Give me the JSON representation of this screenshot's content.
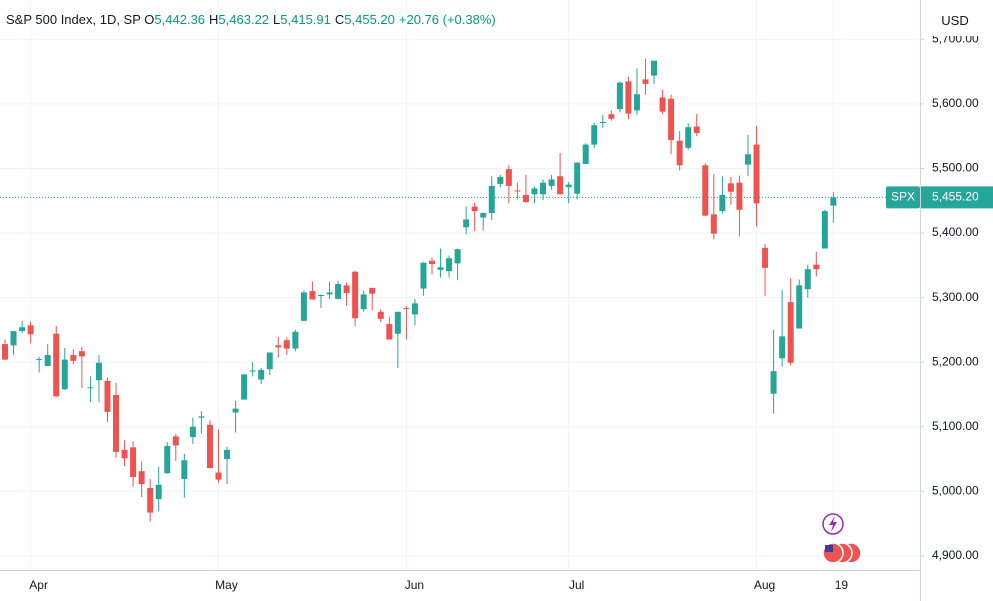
{
  "chart_data": {
    "type": "candlestick",
    "header": {
      "symbol": "S&P 500 Index, 1D, SP",
      "o_key": "O",
      "o": "5,442.36",
      "h_key": "H",
      "h": "5,463.22",
      "l_key": "L",
      "l": "5,415.91",
      "c_key": "C",
      "c": "5,455.20",
      "change": "+20.76 (+0.38%)"
    },
    "currency": "USD",
    "last_price": {
      "symbol": "SPX",
      "value": 5455.2,
      "label": "5,455.20"
    },
    "categories": [
      null,
      null,
      null,
      "Apr",
      null,
      null,
      null,
      null,
      null,
      null,
      null,
      null,
      null,
      null,
      null,
      null,
      null,
      null,
      null,
      null,
      null,
      null,
      null,
      null,
      null,
      "May",
      null,
      null,
      null,
      null,
      null,
      null,
      null,
      null,
      null,
      null,
      null,
      null,
      null,
      null,
      null,
      null,
      null,
      null,
      null,
      null,
      null,
      "Jun",
      null,
      null,
      null,
      null,
      null,
      null,
      null,
      null,
      null,
      null,
      null,
      null,
      null,
      null,
      null,
      null,
      null,
      null,
      "Jul",
      null,
      null,
      null,
      null,
      null,
      null,
      null,
      null,
      null,
      null,
      null,
      null,
      null,
      null,
      null,
      null,
      null,
      null,
      null,
      null,
      null,
      "Aug",
      null,
      null,
      null,
      null,
      null,
      null,
      null,
      null,
      "19"
    ],
    "series": [
      {
        "up_color": "#26a69a",
        "down_color": "#ef5350",
        "open": [
          5228,
          5226,
          5248,
          5257,
          5204,
          5194,
          5244,
          5158,
          5211,
          5217,
          5161,
          5172,
          5171,
          5149,
          5064,
          5068,
          5031,
          5005,
          4988,
          5028,
          5085,
          5019,
          5084,
          5114,
          5103,
          5029,
          5050,
          5122,
          5142,
          5187,
          5173,
          5189,
          5226,
          5234,
          5221,
          5264,
          5310,
          5303,
          5305,
          5298,
          5319,
          5340,
          5282,
          5315,
          5278,
          5259,
          5244,
          5284,
          5274,
          5314,
          5357,
          5343,
          5341,
          5353,
          5409,
          5441,
          5424,
          5431,
          5476,
          5499,
          5466,
          5459,
          5460,
          5460,
          5473,
          5488,
          5471,
          5461,
          5507,
          5537,
          5572,
          5584,
          5592,
          5635,
          5590,
          5638,
          5644,
          5610,
          5608,
          5543,
          5532,
          5565,
          5505,
          5429,
          5434,
          5477,
          5478,
          5506,
          5537,
          5377,
          5151,
          5206,
          5293,
          5252,
          5313,
          5351,
          5376,
          5442.36
        ],
        "high": [
          5235,
          5248,
          5264,
          5263,
          5208,
          5228,
          5256,
          5222,
          5220,
          5224,
          5178,
          5211,
          5176,
          5168,
          5079,
          5077,
          5046,
          5019,
          5038,
          5076,
          5089,
          5058,
          5114,
          5124,
          5110,
          5096,
          5069,
          5140,
          5181,
          5200,
          5191,
          5215,
          5239,
          5238,
          5250,
          5311,
          5325,
          5305,
          5325,
          5326,
          5323,
          5342,
          5311,
          5315,
          5282,
          5270,
          5278,
          5287,
          5298,
          5355,
          5362,
          5376,
          5365,
          5376,
          5441,
          5447,
          5432,
          5488,
          5490,
          5505,
          5478,
          5490,
          5472,
          5483,
          5490,
          5524,
          5479,
          5510,
          5539,
          5571,
          5583,
          5590,
          5635,
          5642,
          5655,
          5670,
          5667,
          5622,
          5614,
          5558,
          5570,
          5585,
          5508,
          5491,
          5488,
          5487,
          5489,
          5552,
          5566,
          5383,
          5250,
          5312,
          5330,
          5328,
          5351,
          5371,
          5436,
          5463.22
        ],
        "low": [
          5203,
          5211,
          5245,
          5229,
          5184,
          5194,
          5146,
          5157,
          5197,
          5160,
          5138,
          5138,
          5107,
          5052,
          5039,
          5007,
          4991,
          4953,
          4969,
          5027,
          5047,
          4990,
          5073,
          5089,
          5035,
          5013,
          5011,
          5091,
          5142,
          5178,
          5166,
          5180,
          5207,
          5211,
          5217,
          5264,
          5297,
          5284,
          5298,
          5297,
          5287,
          5256,
          5278,
          5280,
          5262,
          5235,
          5191,
          5235,
          5257,
          5303,
          5336,
          5331,
          5331,
          5327,
          5398,
          5403,
          5404,
          5420,
          5471,
          5446,
          5452,
          5447,
          5446,
          5451,
          5467,
          5460,
          5446,
          5452,
          5507,
          5532,
          5563,
          5574,
          5587,
          5576,
          5583,
          5614,
          5631,
          5584,
          5522,
          5497,
          5529,
          5550,
          5426,
          5390,
          5430,
          5444,
          5395,
          5488,
          5410,
          5302,
          5120,
          5193,
          5195,
          5252,
          5300,
          5333,
          5376,
          5415.91
        ],
        "close": [
          5204,
          5248,
          5254,
          5243,
          5205,
          5211,
          5147,
          5204,
          5202,
          5209,
          5161,
          5199,
          5123,
          5061,
          5051,
          5022,
          5011,
          4967,
          5010,
          5070,
          5071,
          5048,
          5100,
          5116,
          5036,
          5018,
          5064,
          5128,
          5181,
          5187,
          5188,
          5215,
          5223,
          5221,
          5247,
          5308,
          5297,
          5304,
          5308,
          5321,
          5307,
          5268,
          5305,
          5306,
          5267,
          5235,
          5278,
          5283,
          5291,
          5354,
          5352,
          5347,
          5361,
          5375,
          5421,
          5434,
          5431,
          5473,
          5487,
          5473,
          5465,
          5448,
          5469,
          5478,
          5483,
          5460,
          5475,
          5509,
          5537,
          5567,
          5572,
          5577,
          5633,
          5585,
          5615,
          5631,
          5667,
          5588,
          5544,
          5505,
          5564,
          5555,
          5427,
          5399,
          5459,
          5464,
          5436,
          5522,
          5446,
          5346,
          5186,
          5240,
          5199,
          5319,
          5344,
          5344,
          5434,
          5455.2
        ]
      }
    ],
    "ylim": [
      4878,
      5761
    ],
    "yticks": [
      {
        "value": 4900,
        "label": "4,900.00"
      },
      {
        "value": 5000,
        "label": "5,000.00"
      },
      {
        "value": 5100,
        "label": "5,100.00"
      },
      {
        "value": 5200,
        "label": "5,200.00"
      },
      {
        "value": 5300,
        "label": "5,300.00"
      },
      {
        "value": 5400,
        "label": "5,400.00"
      },
      {
        "value": 5500,
        "label": "5,500.00"
      },
      {
        "value": 5600,
        "label": "5,600.00"
      },
      {
        "value": 5700,
        "label": "5,700.00"
      }
    ],
    "grid": true
  }
}
